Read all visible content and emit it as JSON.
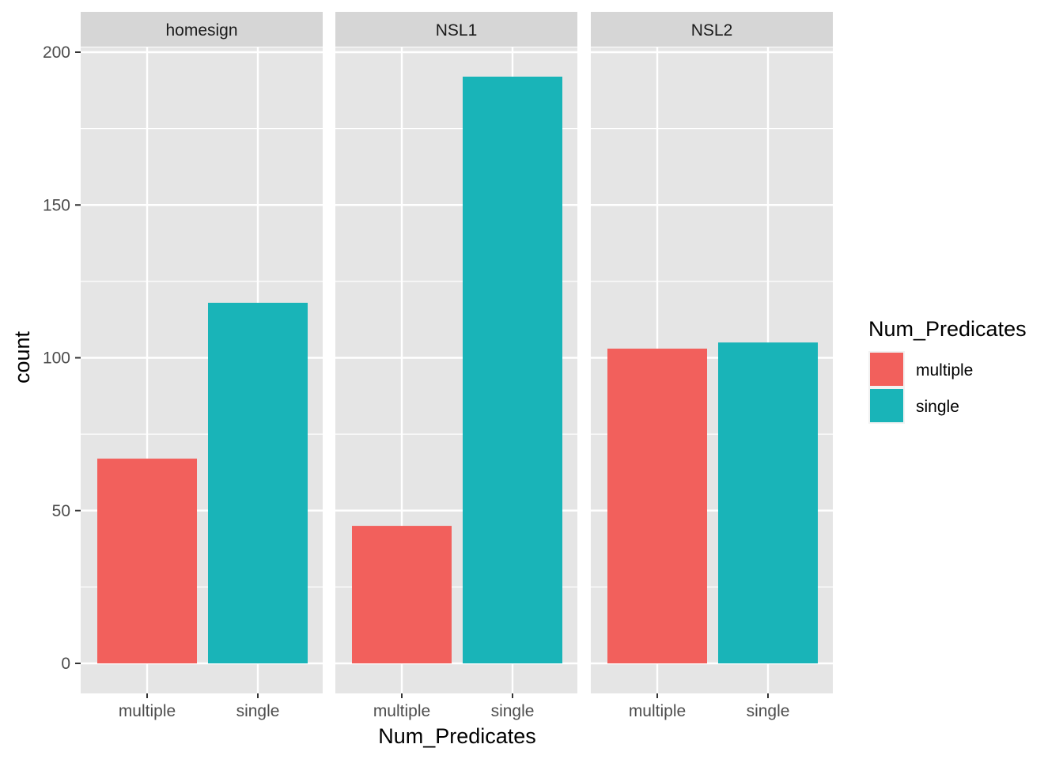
{
  "chart_data": {
    "type": "bar",
    "facets": [
      "homesign",
      "NSL1",
      "NSL2"
    ],
    "categories": [
      "multiple",
      "single"
    ],
    "series": [
      {
        "facet": "homesign",
        "values": [
          67,
          118
        ]
      },
      {
        "facet": "NSL1",
        "values": [
          45,
          192
        ]
      },
      {
        "facet": "NSL2",
        "values": [
          103,
          105
        ]
      }
    ],
    "xlabel": "Num_Predicates",
    "ylabel": "count",
    "ylim": [
      0,
      200
    ],
    "yticks": [
      0,
      50,
      100,
      150,
      200
    ],
    "grid": true,
    "legend": {
      "title": "Num_Predicates",
      "position": "right",
      "entries": [
        "multiple",
        "single"
      ]
    }
  },
  "colors": {
    "multiple": "#F2605C",
    "single": "#19B4B8",
    "panel_bg": "#E5E5E5",
    "strip_bg": "#D6D6D6",
    "grid": "#FFFFFF",
    "text": "#4D4D4D",
    "title_text": "#000000"
  }
}
